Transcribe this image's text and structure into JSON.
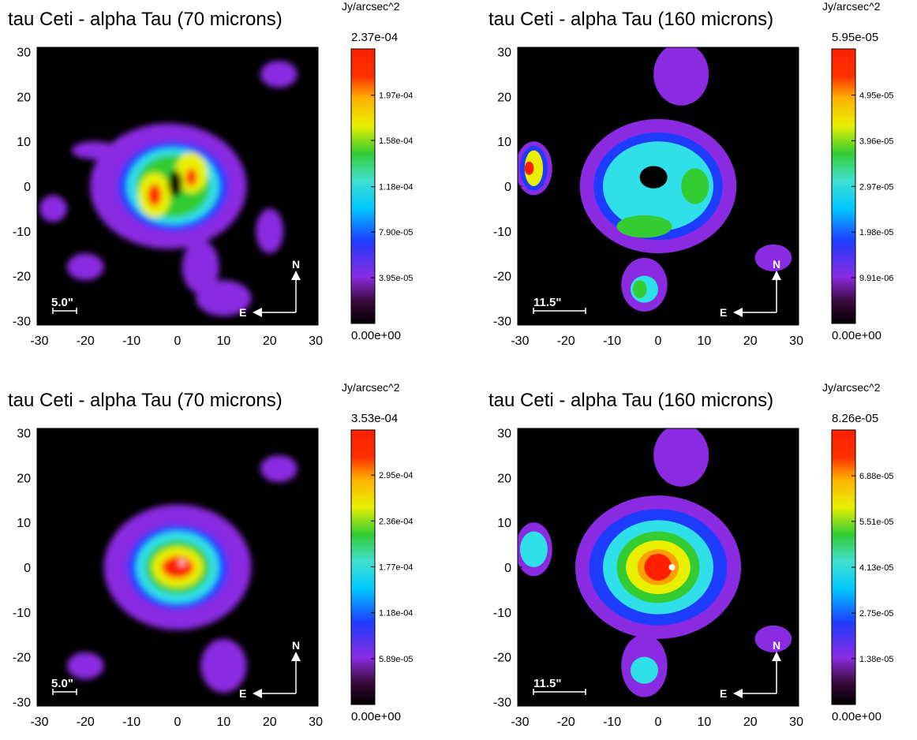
{
  "chart_data": [
    {
      "type": "image",
      "title": "tau Ceti - alpha Tau  (70 microns)",
      "colorbar_label": "Jy/arcsec^2",
      "xlim": [
        -30.5,
        30.5
      ],
      "ylim": [
        -31,
        31
      ],
      "xticks": [
        -30,
        -20,
        -10,
        0,
        10,
        20,
        30
      ],
      "yticks": [
        -30,
        -20,
        -10,
        0,
        10,
        20,
        30
      ],
      "clim": [
        0,
        0.000237
      ],
      "cticks": [
        {
          "value": 0,
          "label": "0.00e+00"
        },
        {
          "value": 3.95e-05,
          "label": "3.95e-05"
        },
        {
          "value": 7.9e-05,
          "label": "7.90e-05"
        },
        {
          "value": 0.000118,
          "label": "1.18e-04"
        },
        {
          "value": 0.000158,
          "label": "1.58e-04"
        },
        {
          "value": 0.000197,
          "label": "1.97e-04"
        },
        {
          "value": 0.000237,
          "label": "2.37e-04"
        }
      ],
      "scale_bar": "5.0\"",
      "north": "N",
      "east": "E"
    },
    {
      "type": "image",
      "title": "tau Ceti - alpha Tau (160 microns)",
      "colorbar_label": "Jy/arcsec^2",
      "xlim": [
        -30.5,
        30.5
      ],
      "ylim": [
        -31,
        31
      ],
      "xticks": [
        -30,
        -20,
        -10,
        0,
        10,
        20,
        30
      ],
      "yticks": [
        -30,
        -20,
        -10,
        0,
        10,
        20,
        30
      ],
      "clim": [
        0,
        5.95e-05
      ],
      "cticks": [
        {
          "value": 0,
          "label": "0.00e+00"
        },
        {
          "value": 9.91e-06,
          "label": "9.91e-06"
        },
        {
          "value": 1.98e-05,
          "label": "1.98e-05"
        },
        {
          "value": 2.97e-05,
          "label": "2.97e-05"
        },
        {
          "value": 3.96e-05,
          "label": "3.96e-05"
        },
        {
          "value": 4.95e-05,
          "label": "4.95e-05"
        },
        {
          "value": 5.95e-05,
          "label": "5.95e-05"
        }
      ],
      "scale_bar": "11.5\"",
      "north": "N",
      "east": "E"
    },
    {
      "type": "image",
      "title": "tau Ceti - alpha Tau  (70 microns)",
      "colorbar_label": "Jy/arcsec^2",
      "xlim": [
        -30.5,
        30.5
      ],
      "ylim": [
        -31,
        31
      ],
      "xticks": [
        -30,
        -20,
        -10,
        0,
        10,
        20,
        30
      ],
      "yticks": [
        -30,
        -20,
        -10,
        0,
        10,
        20,
        30
      ],
      "clim": [
        0,
        0.000353
      ],
      "cticks": [
        {
          "value": 0,
          "label": "0.00e+00"
        },
        {
          "value": 5.89e-05,
          "label": "5.89e-05"
        },
        {
          "value": 0.000118,
          "label": "1.18e-04"
        },
        {
          "value": 0.000177,
          "label": "1.77e-04"
        },
        {
          "value": 0.000236,
          "label": "2.36e-04"
        },
        {
          "value": 0.000295,
          "label": "2.95e-04"
        },
        {
          "value": 0.000353,
          "label": "3.53e-04"
        }
      ],
      "scale_bar": "5.0\"",
      "north": "N",
      "east": "E"
    },
    {
      "type": "image",
      "title": "tau Ceti - alpha Tau (160 microns)",
      "colorbar_label": "Jy/arcsec^2",
      "xlim": [
        -30.5,
        30.5
      ],
      "ylim": [
        -31,
        31
      ],
      "xticks": [
        -30,
        -20,
        -10,
        0,
        10,
        20,
        30
      ],
      "yticks": [
        -30,
        -20,
        -10,
        0,
        10,
        20,
        30
      ],
      "clim": [
        0,
        8.26e-05
      ],
      "cticks": [
        {
          "value": 0,
          "label": "0.00e+00"
        },
        {
          "value": 1.38e-05,
          "label": "1.38e-05"
        },
        {
          "value": 2.75e-05,
          "label": "2.75e-05"
        },
        {
          "value": 4.13e-05,
          "label": "4.13e-05"
        },
        {
          "value": 5.51e-05,
          "label": "5.51e-05"
        },
        {
          "value": 6.88e-05,
          "label": "6.88e-05"
        },
        {
          "value": 8.26e-05,
          "label": "8.26e-05"
        }
      ],
      "scale_bar": "11.5\"",
      "north": "N",
      "east": "E"
    }
  ]
}
